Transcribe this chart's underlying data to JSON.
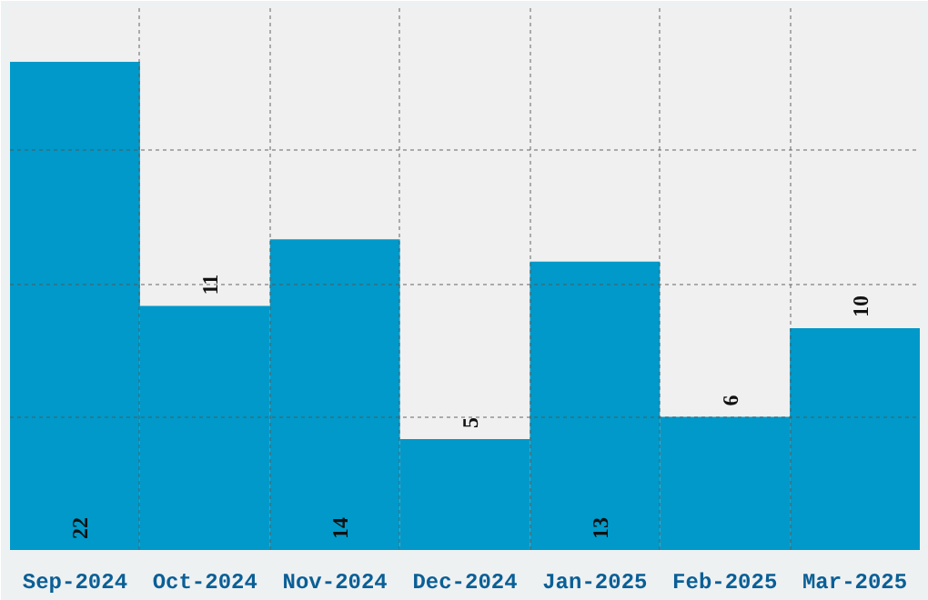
{
  "chart_data": {
    "type": "bar",
    "categories": [
      "Sep-2024",
      "Oct-2024",
      "Nov-2024",
      "Dec-2024",
      "Jan-2025",
      "Feb-2025",
      "Mar-2025"
    ],
    "values": [
      22,
      11,
      14,
      5,
      13,
      6,
      10
    ],
    "color": "#0099c9",
    "data_labels": true,
    "grid": true,
    "ylim": [
      0,
      24.5
    ],
    "yticks": [
      {
        "value": 6,
        "label": null
      },
      {
        "value": 12,
        "label": null
      },
      {
        "value": 18,
        "label": null
      }
    ],
    "tick_labels": "x"
  }
}
